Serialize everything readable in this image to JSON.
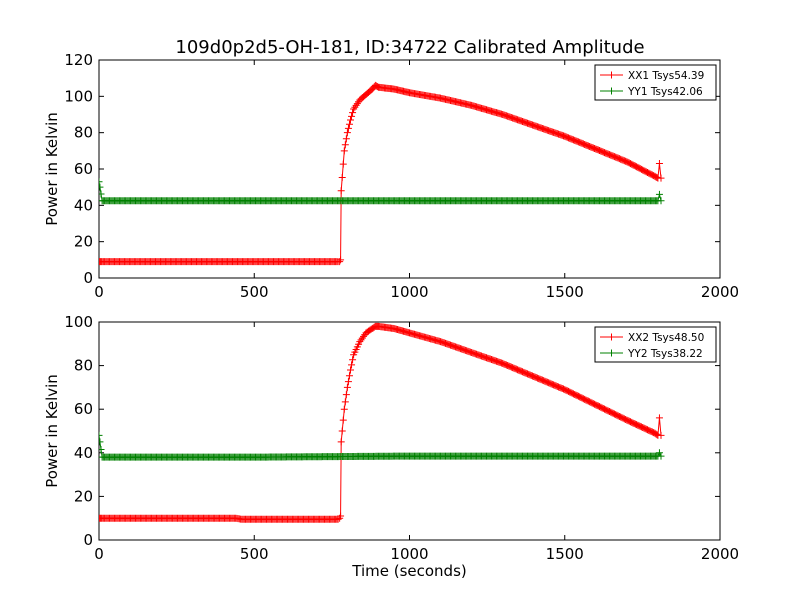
{
  "title": "109d0p2d5-OH-181, ID:34722 Calibrated Amplitude",
  "chart_data": [
    {
      "type": "line",
      "ylabel": "Power in Kelvin",
      "xlabel": "",
      "xlim": [
        0,
        2000
      ],
      "ylim": [
        0,
        120
      ],
      "xticks": [
        "0",
        "500",
        "1000",
        "1500",
        "2000"
      ],
      "yticks": [
        "0",
        "20",
        "40",
        "60",
        "80",
        "100",
        "120"
      ],
      "grid": false,
      "legend_position": "top-right",
      "series": [
        {
          "name": "XX1 Tsys54.39",
          "color": "#ff0000",
          "x": [
            0,
            10,
            770,
            775,
            778,
            780,
            790,
            800,
            810,
            820,
            840,
            860,
            880,
            890,
            900,
            950,
            1000,
            1100,
            1200,
            1300,
            1400,
            1500,
            1600,
            1700,
            1790,
            1800,
            1805,
            1810
          ],
          "y": [
            9,
            9,
            9,
            9,
            10,
            48,
            70,
            80,
            87,
            93,
            98,
            101,
            104,
            106,
            105,
            104,
            102,
            99,
            95,
            90,
            84,
            78,
            71,
            64,
            56,
            55,
            63,
            55
          ]
        },
        {
          "name": "YY1 Tsys42.06",
          "color": "#008000",
          "x": [
            0,
            3,
            10,
            500,
            1000,
            1500,
            1800,
            1805,
            1810
          ],
          "y": [
            53,
            50,
            42.5,
            42.5,
            42.5,
            42.5,
            42.5,
            46,
            42.5
          ]
        }
      ]
    },
    {
      "type": "line",
      "ylabel": "Power in Kelvin",
      "xlabel": "Time (seconds)",
      "xlim": [
        0,
        2000
      ],
      "ylim": [
        0,
        100
      ],
      "xticks": [
        "0",
        "500",
        "1000",
        "1500",
        "2000"
      ],
      "yticks": [
        "0",
        "20",
        "40",
        "60",
        "80",
        "100"
      ],
      "grid": false,
      "legend_position": "top-right",
      "series": [
        {
          "name": "XX2 Tsys48.50",
          "color": "#ff0000",
          "x": [
            0,
            10,
            440,
            460,
            770,
            775,
            778,
            780,
            790,
            800,
            810,
            820,
            840,
            860,
            880,
            890,
            900,
            950,
            1000,
            1100,
            1200,
            1300,
            1400,
            1500,
            1600,
            1700,
            1790,
            1800,
            1805,
            1810
          ],
          "y": [
            10,
            10,
            10,
            9.5,
            9.5,
            10,
            11,
            45,
            60,
            70,
            78,
            85,
            91,
            95,
            97,
            98,
            98,
            97,
            95,
            91,
            86,
            81,
            75,
            69,
            62,
            55,
            49,
            48,
            56,
            48
          ]
        },
        {
          "name": "YY2 Tsys38.22",
          "color": "#008000",
          "x": [
            0,
            3,
            10,
            500,
            1000,
            1500,
            1800,
            1805,
            1810
          ],
          "y": [
            48,
            45,
            38,
            38,
            38.5,
            38.5,
            38.5,
            40,
            38.5
          ]
        }
      ]
    }
  ]
}
